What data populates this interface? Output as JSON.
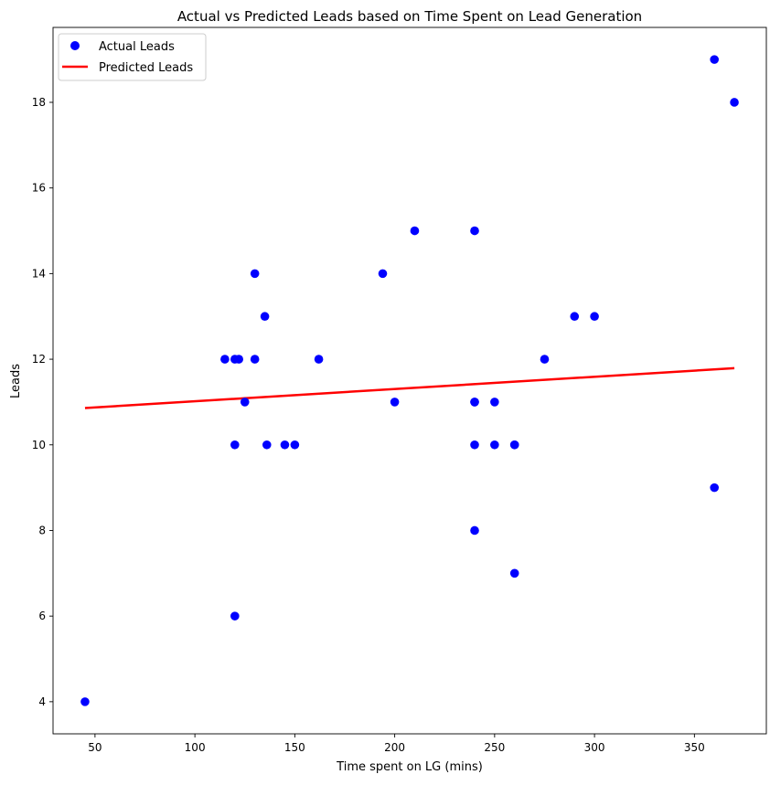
{
  "chart_data": {
    "type": "scatter",
    "title": "Actual vs Predicted Leads based on Time Spent on Lead Generation",
    "xlabel": "Time spent on LG (mins)",
    "ylabel": "Leads",
    "xlim": [
      29,
      386
    ],
    "ylim": [
      3.25,
      19.75
    ],
    "xticks": [
      50,
      100,
      150,
      200,
      250,
      300,
      350
    ],
    "yticks": [
      4,
      6,
      8,
      10,
      12,
      14,
      16,
      18
    ],
    "grid": false,
    "legend": {
      "position": "upper-left"
    },
    "series": [
      {
        "name": "Actual Leads",
        "kind": "scatter",
        "color": "#0000ff",
        "points": [
          [
            45,
            4
          ],
          [
            115,
            12
          ],
          [
            120,
            12
          ],
          [
            120,
            10
          ],
          [
            120,
            6
          ],
          [
            122,
            12
          ],
          [
            125,
            11
          ],
          [
            130,
            14
          ],
          [
            130,
            12
          ],
          [
            135,
            13
          ],
          [
            136,
            10
          ],
          [
            145,
            10
          ],
          [
            150,
            10
          ],
          [
            162,
            12
          ],
          [
            194,
            14
          ],
          [
            200,
            11
          ],
          [
            210,
            15
          ],
          [
            240,
            15
          ],
          [
            240,
            11
          ],
          [
            240,
            11
          ],
          [
            240,
            10
          ],
          [
            240,
            8
          ],
          [
            250,
            11
          ],
          [
            250,
            10
          ],
          [
            260,
            10
          ],
          [
            260,
            10
          ],
          [
            260,
            7
          ],
          [
            275,
            12
          ],
          [
            290,
            13
          ],
          [
            300,
            13
          ],
          [
            360,
            19
          ],
          [
            360,
            9
          ],
          [
            370,
            18
          ]
        ]
      },
      {
        "name": "Predicted Leads",
        "kind": "line",
        "color": "#ff0000",
        "points": [
          [
            45,
            10.86
          ],
          [
            370,
            11.79
          ]
        ]
      }
    ]
  }
}
